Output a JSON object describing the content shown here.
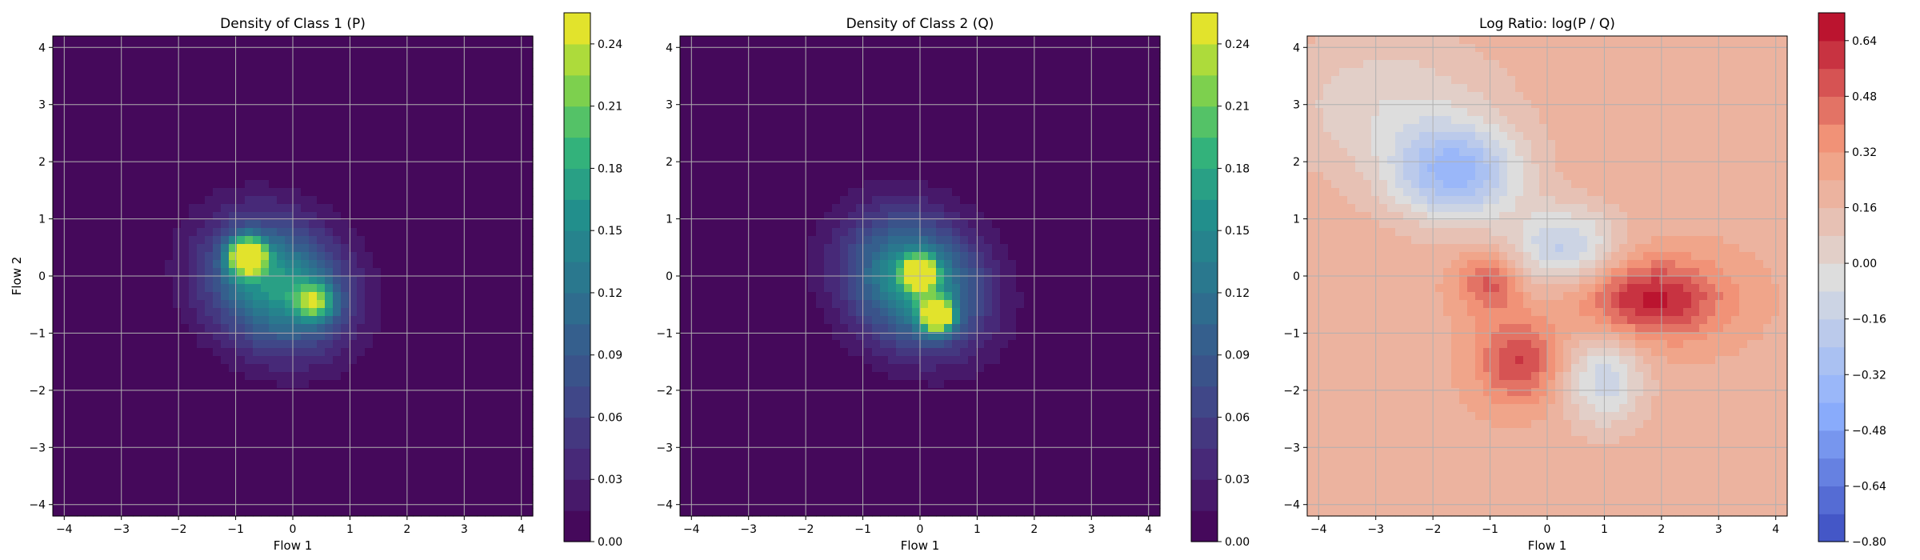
{
  "chart_data": [
    {
      "type": "heatmap",
      "title": "Density of Class 1 (P)",
      "xlabel": "Flow 1",
      "ylabel": "Flow 2",
      "xlim": [
        -4.2,
        4.2
      ],
      "ylim": [
        -4.2,
        4.2
      ],
      "xticks": [
        -4,
        -3,
        -2,
        -1,
        0,
        1,
        2,
        3,
        4
      ],
      "yticks": [
        -4,
        -3,
        -2,
        -1,
        0,
        1,
        2,
        3,
        4
      ],
      "grid": true,
      "colormap": "viridis",
      "colorbar": {
        "min": 0.0,
        "max": 0.255,
        "ticks": [
          0.0,
          0.03,
          0.06,
          0.09,
          0.12,
          0.15,
          0.18,
          0.21,
          0.24
        ],
        "tick_labels": [
          "0.00",
          "0.03",
          "0.06",
          "0.09",
          "0.12",
          "0.15",
          "0.18",
          "0.21",
          "0.24"
        ]
      },
      "features": [
        {
          "kind": "peak",
          "x": -0.3,
          "y": -0.15,
          "peak_value": 0.17,
          "sx": 0.9,
          "sy": 0.75,
          "rot_deg": -35
        },
        {
          "kind": "peak",
          "x": -0.8,
          "y": 0.35,
          "peak_value": 0.24,
          "sx": 0.22,
          "sy": 0.22
        },
        {
          "kind": "peak",
          "x": 0.4,
          "y": -0.45,
          "peak_value": 0.13,
          "sx": 0.25,
          "sy": 0.25
        }
      ]
    },
    {
      "type": "heatmap",
      "title": "Density of Class 2 (Q)",
      "xlabel": "Flow 1",
      "ylabel": "",
      "xlim": [
        -4.2,
        4.2
      ],
      "ylim": [
        -4.2,
        4.2
      ],
      "xticks": [
        -4,
        -3,
        -2,
        -1,
        0,
        1,
        2,
        3,
        4
      ],
      "yticks": [
        -4,
        -3,
        -2,
        -1,
        0,
        1,
        2,
        3,
        4
      ],
      "grid": true,
      "colormap": "viridis",
      "colorbar": {
        "min": 0.0,
        "max": 0.255,
        "ticks": [
          0.0,
          0.03,
          0.06,
          0.09,
          0.12,
          0.15,
          0.18,
          0.21,
          0.24
        ],
        "tick_labels": [
          "0.00",
          "0.03",
          "0.06",
          "0.09",
          "0.12",
          "0.15",
          "0.18",
          "0.21",
          "0.24"
        ]
      },
      "features": [
        {
          "kind": "peak",
          "x": -0.1,
          "y": -0.1,
          "peak_value": 0.17,
          "sx": 0.9,
          "sy": 0.75,
          "rot_deg": -40
        },
        {
          "kind": "peak",
          "x": 0.0,
          "y": 0.05,
          "peak_value": 0.21,
          "sx": 0.2,
          "sy": 0.2
        },
        {
          "kind": "peak",
          "x": 0.3,
          "y": -0.7,
          "peak_value": 0.24,
          "sx": 0.2,
          "sy": 0.2
        }
      ]
    },
    {
      "type": "heatmap",
      "title": "Log Ratio: log(P / Q)",
      "xlabel": "Flow 1",
      "ylabel": "",
      "xlim": [
        -4.2,
        4.2
      ],
      "ylim": [
        -4.2,
        4.2
      ],
      "xticks": [
        -4,
        -3,
        -2,
        -1,
        0,
        1,
        2,
        3,
        4
      ],
      "yticks": [
        -4,
        -3,
        -2,
        -1,
        0,
        1,
        2,
        3,
        4
      ],
      "grid": true,
      "colormap": "coolwarm",
      "colorbar": {
        "min": -0.8,
        "max": 0.72,
        "ticks": [
          -0.8,
          -0.64,
          -0.48,
          -0.32,
          -0.16,
          0.0,
          0.16,
          0.32,
          0.48,
          0.64
        ],
        "tick_labels": [
          "−0.80",
          "−0.64",
          "−0.48",
          "−0.32",
          "−0.16",
          "0.00",
          "0.16",
          "0.32",
          "0.48",
          "0.64"
        ]
      },
      "features": [
        {
          "kind": "background",
          "value": 0.22
        },
        {
          "kind": "blob",
          "x": -1.6,
          "y": 1.8,
          "value": -0.55,
          "sx": 0.8,
          "sy": 0.6
        },
        {
          "kind": "blob",
          "x": -2.8,
          "y": 3.0,
          "value": -0.2,
          "sx": 1.4,
          "sy": 0.9
        },
        {
          "kind": "blob",
          "x": 0.3,
          "y": 0.5,
          "value": -0.4,
          "sx": 0.7,
          "sy": 0.5
        },
        {
          "kind": "blob",
          "x": 1.0,
          "y": -1.8,
          "value": -0.35,
          "sx": 0.5,
          "sy": 0.6
        },
        {
          "kind": "blob",
          "x": 1.8,
          "y": -0.4,
          "value": 0.45,
          "sx": 0.9,
          "sy": 0.5
        },
        {
          "kind": "blob",
          "x": -0.5,
          "y": -1.5,
          "value": 0.35,
          "sx": 0.5,
          "sy": 0.5
        },
        {
          "kind": "blob",
          "x": -1.0,
          "y": -0.1,
          "value": 0.3,
          "sx": 0.4,
          "sy": 0.4
        }
      ]
    }
  ]
}
